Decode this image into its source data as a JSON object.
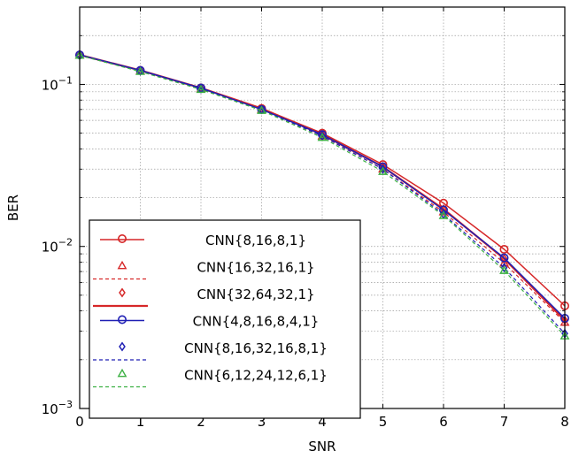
{
  "chart_data": {
    "type": "line",
    "xlabel": "SNR",
    "ylabel": "BER",
    "xlim": [
      0,
      8
    ],
    "ylim": [
      0.001,
      0.3
    ],
    "yscale": "log",
    "grid": true,
    "legend_position": "bottom-left",
    "x_ticks": [
      "0",
      "1",
      "2",
      "3",
      "4",
      "5",
      "6",
      "7",
      "8"
    ],
    "y_ticks": [
      {
        "value": 0.1,
        "base": "10",
        "exp": "−1"
      },
      {
        "value": 0.01,
        "base": "10",
        "exp": "−2"
      },
      {
        "value": 0.001,
        "base": "10",
        "exp": "−3"
      }
    ],
    "x": [
      0,
      1,
      2,
      3,
      4,
      5,
      6,
      7,
      8
    ],
    "series": [
      {
        "name": "CNN{8,16,8,1}",
        "color": "#d62728",
        "line": "solid",
        "marker": "circle",
        "values": [
          0.152,
          0.122,
          0.095,
          0.071,
          0.05,
          0.032,
          0.0185,
          0.0096,
          0.0043
        ]
      },
      {
        "name": "CNN{16,32,16,1}",
        "color": "#d62728",
        "line": "dashed",
        "marker": "triangle",
        "values": [
          0.151,
          0.121,
          0.094,
          0.07,
          0.048,
          0.03,
          0.0163,
          0.0079,
          0.0034
        ]
      },
      {
        "name": "CNN{32,64,32,1}",
        "color": "#d62728",
        "line": "solid-thick",
        "marker": "diamond",
        "values": [
          0.152,
          0.122,
          0.095,
          0.071,
          0.049,
          0.031,
          0.017,
          0.0084,
          0.0035
        ]
      },
      {
        "name": "CNN{4,8,16,8,4,1}",
        "color": "#1f1fb4",
        "line": "solid",
        "marker": "circle",
        "values": [
          0.152,
          0.122,
          0.095,
          0.07,
          0.049,
          0.031,
          0.0168,
          0.0085,
          0.0036
        ]
      },
      {
        "name": "CNN{8,16,32,16,8,1}",
        "color": "#1f1fb4",
        "line": "dashed",
        "marker": "diamond",
        "values": [
          0.151,
          0.121,
          0.094,
          0.07,
          0.048,
          0.03,
          0.0158,
          0.0074,
          0.0029
        ]
      },
      {
        "name": "CNN{6,12,24,12,6,1}",
        "color": "#3cb043",
        "line": "dashed",
        "marker": "triangle",
        "values": [
          0.151,
          0.12,
          0.093,
          0.069,
          0.047,
          0.029,
          0.0155,
          0.0071,
          0.0028
        ]
      }
    ]
  }
}
